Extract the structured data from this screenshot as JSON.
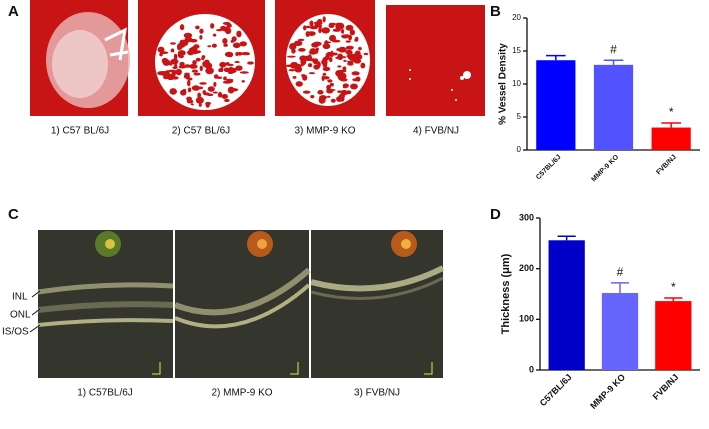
{
  "panels": {
    "a": "A",
    "b": "B",
    "c": "C",
    "d": "D"
  },
  "fundus_captions": [
    "1) C57 BL/6J",
    "2) C57 BL/6J",
    "3) MMP-9 KO",
    "4) FVB/NJ"
  ],
  "oct_captions": [
    "1) C57BL/6J",
    "2) MMP-9 KO",
    "3) FVB/NJ"
  ],
  "oct_layers": [
    "INL",
    "ONL",
    "IS/OS"
  ],
  "chart_data": [
    {
      "type": "bar",
      "y_label": "% Vessel Density",
      "categories": [
        "C57BL/6J",
        "MMP-9 KO",
        "FVB/NJ"
      ],
      "values": [
        13.6,
        12.9,
        3.4
      ],
      "errors": [
        0.7,
        0.7,
        0.7
      ],
      "annotations": [
        null,
        "#",
        "*"
      ],
      "colors": [
        "#0000ff",
        "#5252ff",
        "#ff0000"
      ],
      "ylim": [
        0,
        20
      ],
      "yticks": [
        0,
        5,
        10,
        15,
        20
      ]
    },
    {
      "type": "bar",
      "y_label": "Thickness (μm)",
      "categories": [
        "C57BL/6J",
        "MMP-9 KO",
        "FVB/NJ"
      ],
      "values": [
        256,
        152,
        136
      ],
      "errors": [
        8,
        20,
        6
      ],
      "annotations": [
        null,
        "#",
        "*"
      ],
      "colors": [
        "#0000c8",
        "#6666ff",
        "#ff0000"
      ],
      "ylim": [
        0,
        300
      ],
      "yticks": [
        0,
        100,
        200,
        300
      ]
    }
  ]
}
